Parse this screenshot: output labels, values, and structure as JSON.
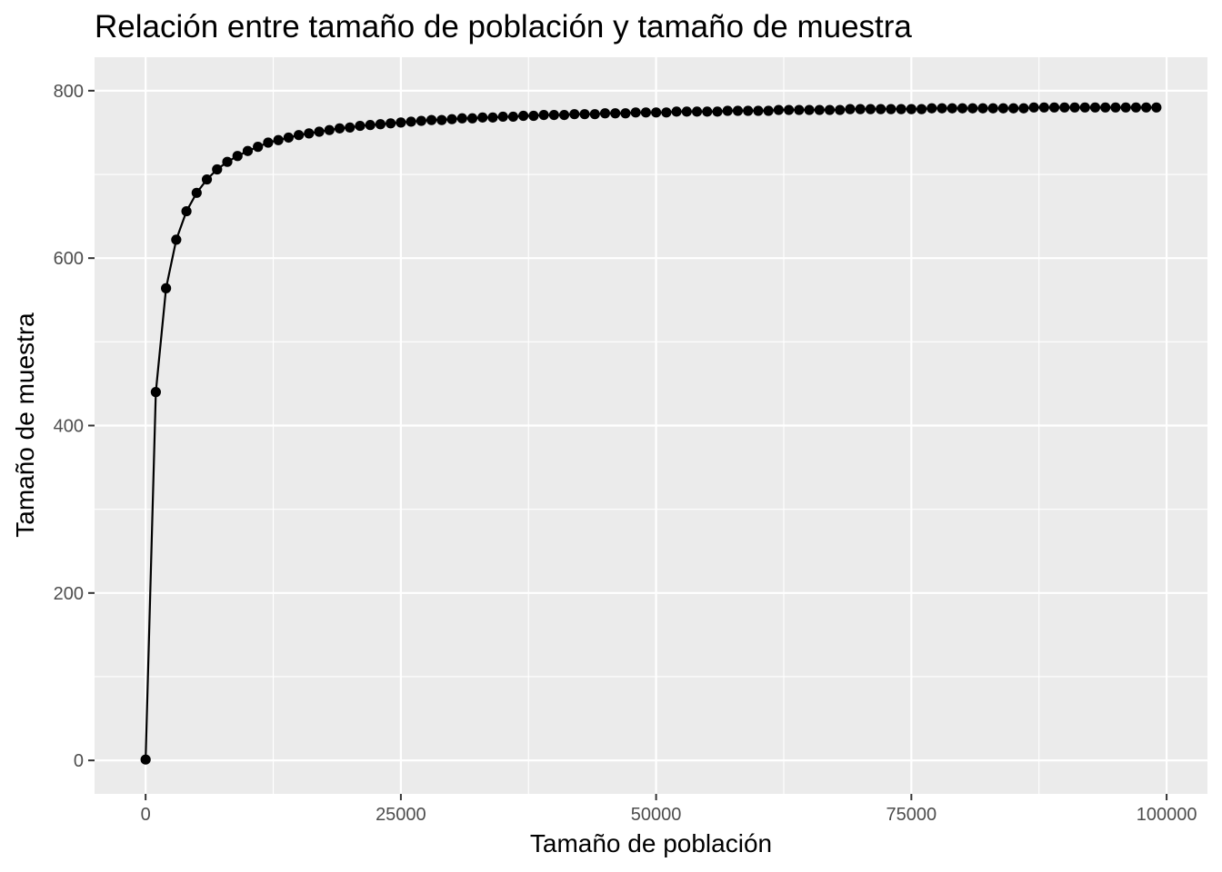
{
  "chart_data": {
    "type": "line",
    "title": "Relación entre tamaño de población y tamaño de muestra",
    "xlabel": "Tamaño de población",
    "ylabel": "Tamaño de muestra",
    "xlim": [
      -5000,
      104000
    ],
    "ylim": [
      -40,
      840
    ],
    "x_ticks": [
      0,
      25000,
      50000,
      75000,
      100000
    ],
    "x_tick_labels": [
      "0",
      "25000",
      "50000",
      "75000",
      "100000"
    ],
    "y_ticks": [
      0,
      200,
      400,
      600,
      800
    ],
    "y_tick_labels": [
      "0",
      "200",
      "400",
      "600",
      "800"
    ],
    "grid": true,
    "background": "#ebebeb",
    "grid_color": "#ffffff",
    "series": [
      {
        "color": "#000000",
        "markers": true,
        "x": [
          1,
          1001,
          2001,
          3001,
          4001,
          5001,
          6001,
          7001,
          8001,
          9001,
          10001,
          11001,
          12001,
          13001,
          14001,
          15001,
          16001,
          17001,
          18001,
          19001,
          20001,
          21001,
          22001,
          23001,
          24001,
          25001,
          26001,
          27001,
          28001,
          29001,
          30001,
          31001,
          32001,
          33001,
          34001,
          35001,
          36001,
          37001,
          38001,
          39001,
          40001,
          41001,
          42001,
          43001,
          44001,
          45001,
          46001,
          47001,
          48001,
          49001,
          50001,
          51001,
          52001,
          53001,
          54001,
          55001,
          56001,
          57001,
          58001,
          59001,
          60001,
          61001,
          62001,
          63001,
          64001,
          65001,
          66001,
          67001,
          68001,
          69001,
          70001,
          71001,
          72001,
          73001,
          74001,
          75001,
          76001,
          77001,
          78001,
          79001,
          80001,
          81001,
          82001,
          83001,
          84001,
          85001,
          86001,
          87001,
          88001,
          89001,
          90001,
          91001,
          92001,
          93001,
          94001,
          95001,
          96001,
          97001,
          98001,
          99001
        ],
        "y": [
          1,
          440,
          564,
          622,
          656,
          678,
          694,
          706,
          715,
          722,
          728,
          733,
          738,
          741,
          744,
          747,
          749,
          751,
          753,
          755,
          756,
          758,
          759,
          760,
          761,
          762,
          763,
          764,
          765,
          765,
          766,
          767,
          767,
          768,
          768,
          769,
          769,
          770,
          770,
          771,
          771,
          771,
          772,
          772,
          772,
          773,
          773,
          773,
          774,
          774,
          774,
          774,
          775,
          775,
          775,
          775,
          775,
          776,
          776,
          776,
          776,
          776,
          777,
          777,
          777,
          777,
          777,
          777,
          777,
          778,
          778,
          778,
          778,
          778,
          778,
          778,
          778,
          779,
          779,
          779,
          779,
          779,
          779,
          779,
          779,
          779,
          779,
          780,
          780,
          780,
          780,
          780,
          780,
          780,
          780,
          780,
          780,
          780,
          780,
          780
        ]
      }
    ]
  }
}
